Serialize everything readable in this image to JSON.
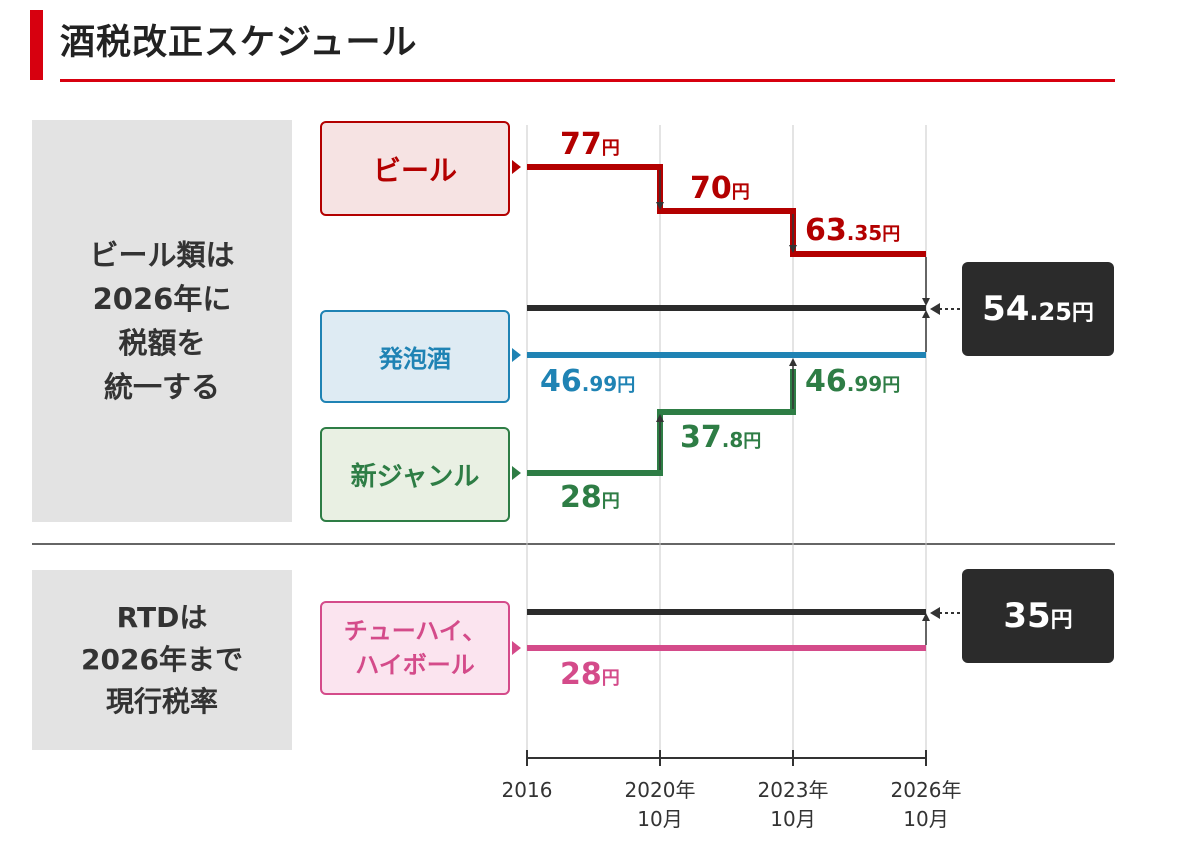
{
  "title": "酒税改正スケジュール",
  "side_top_lines": [
    "ビール類は",
    "2026年に",
    "税額を",
    "統一する"
  ],
  "side_bottom_lines": [
    "RTDは",
    "2026年まで",
    "現行税率"
  ],
  "categories": {
    "beer": "ビール",
    "happoshu": "発泡酒",
    "new_genre": "新ジャンル",
    "rtd_lines": [
      "チューハイ、",
      "ハイボール"
    ]
  },
  "colors": {
    "accent": "#d7000f",
    "beer": "#b30000",
    "happoshu": "#1f83b4",
    "new_genre": "#2e7d45",
    "rtd": "#d44b8a",
    "dark": "#2b2b2b"
  },
  "labels": {
    "beer_2016": {
      "num": "77",
      "dec": "",
      "unit": "円"
    },
    "beer_2020": {
      "num": "70",
      "dec": "",
      "unit": "円"
    },
    "beer_2023": {
      "num": "63",
      "dec": ".35",
      "unit": "円"
    },
    "happo_2016": {
      "num": "46",
      "dec": ".99",
      "unit": "円"
    },
    "new_2016": {
      "num": "28",
      "dec": "",
      "unit": "円"
    },
    "new_2020": {
      "num": "37",
      "dec": ".8",
      "unit": "円"
    },
    "new_2023": {
      "num": "46",
      "dec": ".99",
      "unit": "円"
    },
    "rtd_2016": {
      "num": "28",
      "dec": "",
      "unit": "円"
    },
    "unified_2026": {
      "num": "54",
      "dec": ".25",
      "unit": "円"
    },
    "rtd_2026": {
      "num": "35",
      "dec": "",
      "unit": "円"
    }
  },
  "axis_ticks": [
    {
      "lines": [
        "2016"
      ]
    },
    {
      "lines": [
        "2020年",
        "10月"
      ]
    },
    {
      "lines": [
        "2023年",
        "10月"
      ]
    },
    {
      "lines": [
        "2026年",
        "10月"
      ]
    }
  ]
}
